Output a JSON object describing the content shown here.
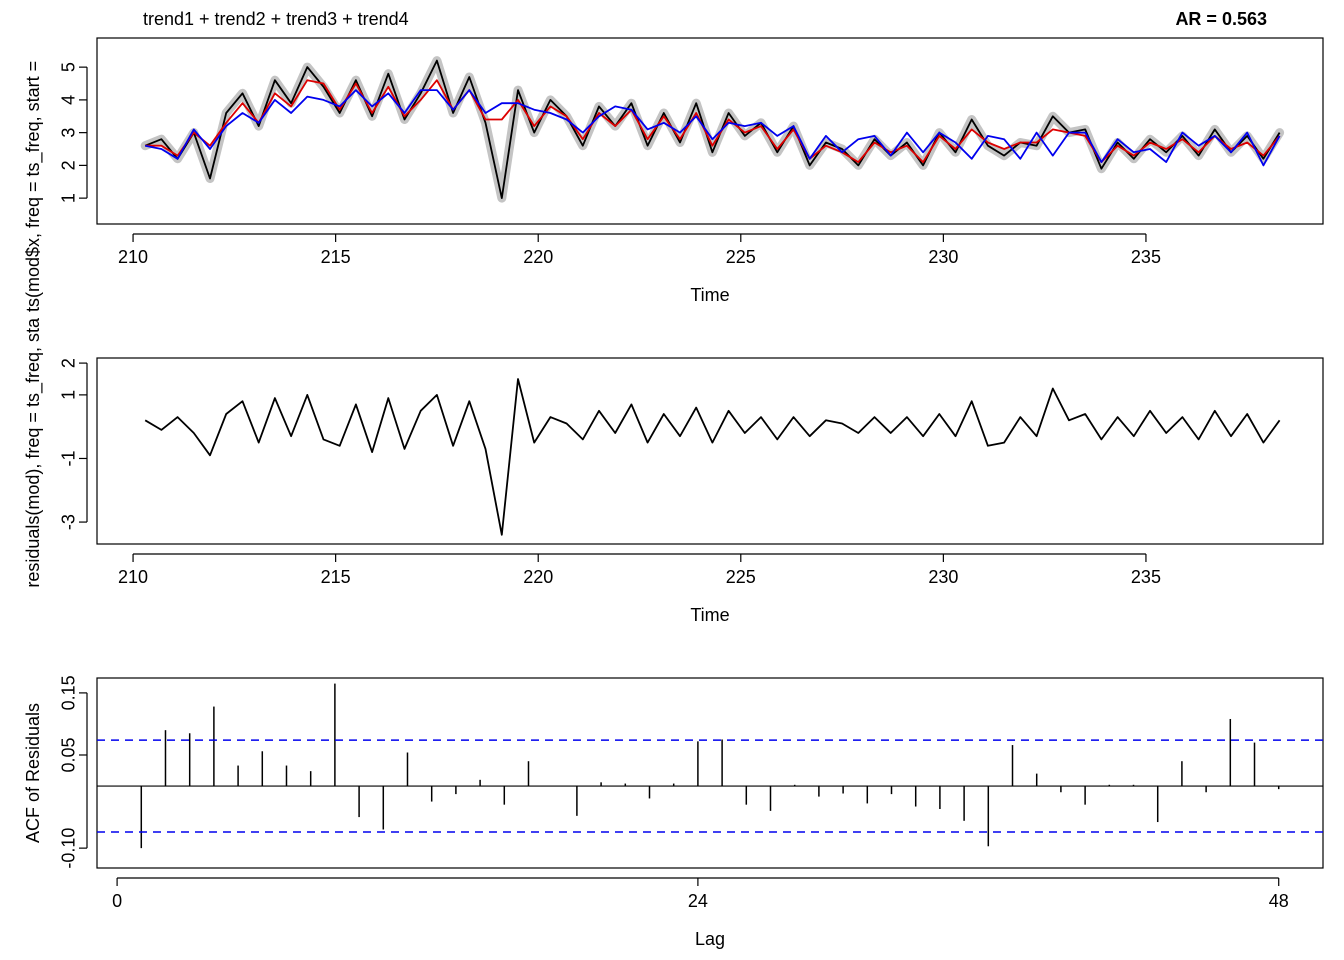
{
  "chart_data": [
    {
      "type": "line",
      "title": "trend1 + trend2 + trend3 + trend4",
      "subtitle": "AR = 0.563",
      "xlabel": "Time",
      "ylabel": "ts(mod$x, freq = ts_freq, start =",
      "xlim": [
        209.11,
        239.37
      ],
      "ylim": [
        0.21,
        5.89
      ],
      "xticks": [
        210,
        215,
        220,
        225,
        230,
        235
      ],
      "yticks": [
        1,
        2,
        3,
        4,
        5
      ],
      "x": [
        210.3,
        210.7,
        211.1,
        211.5,
        211.9,
        212.3,
        212.7,
        213.1,
        213.5,
        213.9,
        214.3,
        214.7,
        215.1,
        215.5,
        215.9,
        216.3,
        216.7,
        217.1,
        217.5,
        217.9,
        218.3,
        218.7,
        219.1,
        219.5,
        219.9,
        220.3,
        220.7,
        221.1,
        221.5,
        221.9,
        222.3,
        222.7,
        223.1,
        223.5,
        223.9,
        224.3,
        224.7,
        225.1,
        225.5,
        225.9,
        226.3,
        226.7,
        227.1,
        227.5,
        227.9,
        228.3,
        228.7,
        229.1,
        229.5,
        229.9,
        230.3,
        230.7,
        231.1,
        231.5,
        231.9,
        232.3,
        232.7,
        233.1,
        233.5,
        233.9,
        234.3,
        234.7,
        235.1,
        235.5,
        235.9,
        236.3,
        236.7,
        237.1,
        237.5,
        237.9,
        238.3
      ],
      "series": [
        {
          "color": "#000000",
          "halo": "#c4c4c4",
          "values": [
            2.6,
            2.8,
            2.2,
            3.0,
            1.6,
            3.6,
            4.2,
            3.2,
            4.6,
            3.9,
            5.0,
            4.4,
            3.6,
            4.6,
            3.5,
            4.8,
            3.4,
            4.2,
            5.2,
            3.6,
            4.7,
            3.3,
            1.0,
            4.3,
            3.0,
            4.0,
            3.5,
            2.6,
            3.8,
            3.2,
            3.9,
            2.6,
            3.6,
            2.7,
            3.9,
            2.4,
            3.6,
            2.9,
            3.3,
            2.4,
            3.2,
            2.0,
            2.7,
            2.5,
            2.0,
            2.8,
            2.3,
            2.7,
            2.0,
            3.0,
            2.4,
            3.4,
            2.6,
            2.3,
            2.7,
            2.6,
            3.5,
            3.0,
            3.1,
            1.9,
            2.7,
            2.2,
            2.8,
            2.4,
            2.9,
            2.3,
            3.1,
            2.4,
            2.9,
            2.2,
            3.0
          ]
        },
        {
          "color": "#dd0000",
          "values": [
            2.6,
            2.6,
            2.3,
            3.0,
            2.6,
            3.3,
            3.9,
            3.3,
            4.2,
            3.8,
            4.6,
            4.5,
            3.7,
            4.5,
            3.6,
            4.4,
            3.5,
            4.0,
            4.6,
            3.7,
            4.3,
            3.4,
            3.4,
            4.0,
            3.2,
            3.8,
            3.5,
            2.8,
            3.6,
            3.2,
            3.7,
            2.8,
            3.5,
            2.8,
            3.6,
            2.6,
            3.4,
            3.0,
            3.2,
            2.5,
            3.1,
            2.2,
            2.6,
            2.4,
            2.1,
            2.7,
            2.4,
            2.6,
            2.1,
            2.9,
            2.5,
            3.1,
            2.7,
            2.5,
            2.7,
            2.7,
            3.1,
            3.0,
            2.9,
            2.1,
            2.6,
            2.3,
            2.7,
            2.5,
            2.8,
            2.4,
            2.9,
            2.5,
            2.7,
            2.3,
            2.9
          ]
        },
        {
          "color": "#0000ee",
          "values": [
            2.6,
            2.5,
            2.2,
            3.1,
            2.5,
            3.2,
            3.6,
            3.3,
            4.0,
            3.6,
            4.1,
            4.0,
            3.8,
            4.3,
            3.8,
            4.2,
            3.6,
            4.3,
            4.3,
            3.7,
            4.3,
            3.6,
            3.9,
            3.9,
            3.7,
            3.6,
            3.4,
            3.0,
            3.5,
            3.8,
            3.7,
            3.1,
            3.3,
            3.0,
            3.5,
            2.8,
            3.3,
            3.2,
            3.3,
            2.9,
            3.2,
            2.2,
            2.9,
            2.4,
            2.8,
            2.9,
            2.3,
            3.0,
            2.4,
            3.0,
            2.7,
            2.2,
            2.9,
            2.8,
            2.2,
            3.0,
            2.3,
            3.0,
            3.0,
            2.1,
            2.8,
            2.4,
            2.5,
            2.1,
            3.0,
            2.6,
            2.9,
            2.4,
            3.0,
            2.0,
            2.9
          ]
        }
      ]
    },
    {
      "type": "line",
      "xlabel": "Time",
      "ylabel": "residuals(mod), freq = ts_freq, sta",
      "xlim": [
        209.11,
        239.37
      ],
      "ylim": [
        -3.69,
        2.16
      ],
      "xticks": [
        210,
        215,
        220,
        225,
        230,
        235
      ],
      "yticks": [
        -3,
        -1,
        1,
        2
      ],
      "x": [
        210.3,
        210.7,
        211.1,
        211.5,
        211.9,
        212.3,
        212.7,
        213.1,
        213.5,
        213.9,
        214.3,
        214.7,
        215.1,
        215.5,
        215.9,
        216.3,
        216.7,
        217.1,
        217.5,
        217.9,
        218.3,
        218.7,
        219.1,
        219.5,
        219.9,
        220.3,
        220.7,
        221.1,
        221.5,
        221.9,
        222.3,
        222.7,
        223.1,
        223.5,
        223.9,
        224.3,
        224.7,
        225.1,
        225.5,
        225.9,
        226.3,
        226.7,
        227.1,
        227.5,
        227.9,
        228.3,
        228.7,
        229.1,
        229.5,
        229.9,
        230.3,
        230.7,
        231.1,
        231.5,
        231.9,
        232.3,
        232.7,
        233.1,
        233.5,
        233.9,
        234.3,
        234.7,
        235.1,
        235.5,
        235.9,
        236.3,
        236.7,
        237.1,
        237.5,
        237.9,
        238.3
      ],
      "series": [
        {
          "color": "#000000",
          "values": [
            0.2,
            -0.1,
            0.3,
            -0.2,
            -0.9,
            0.4,
            0.8,
            -0.5,
            0.9,
            -0.3,
            1.0,
            -0.4,
            -0.6,
            0.7,
            -0.8,
            0.9,
            -0.7,
            0.5,
            1.0,
            -0.6,
            0.8,
            -0.7,
            -3.4,
            1.5,
            -0.5,
            0.3,
            0.1,
            -0.4,
            0.5,
            -0.2,
            0.7,
            -0.5,
            0.4,
            -0.3,
            0.6,
            -0.5,
            0.5,
            -0.2,
            0.3,
            -0.4,
            0.3,
            -0.3,
            0.2,
            0.1,
            -0.2,
            0.3,
            -0.2,
            0.3,
            -0.3,
            0.4,
            -0.3,
            0.8,
            -0.6,
            -0.5,
            0.3,
            -0.3,
            1.2,
            0.2,
            0.4,
            -0.4,
            0.3,
            -0.3,
            0.5,
            -0.2,
            0.3,
            -0.4,
            0.5,
            -0.3,
            0.4,
            -0.5,
            0.2
          ]
        }
      ]
    },
    {
      "type": "bar",
      "xlabel": "Lag",
      "ylabel": "ACF of Residuals",
      "xlim": [
        -0.83,
        49.83
      ],
      "ylim": [
        -0.132,
        0.174
      ],
      "xticks": [
        0,
        24,
        48
      ],
      "yticks": [
        {
          "value": -0.1,
          "label": "-0.10"
        },
        0.05,
        0.15
      ],
      "x": [
        1,
        2,
        3,
        4,
        5,
        6,
        7,
        8,
        9,
        10,
        11,
        12,
        13,
        14,
        15,
        16,
        17,
        18,
        19,
        20,
        21,
        22,
        23,
        24,
        25,
        26,
        27,
        28,
        29,
        30,
        31,
        32,
        33,
        34,
        35,
        36,
        37,
        38,
        39,
        40,
        41,
        42,
        43,
        44,
        45,
        46,
        47,
        48
      ],
      "values": [
        -0.1,
        0.09,
        0.085,
        0.128,
        0.033,
        0.056,
        0.033,
        0.024,
        0.165,
        -0.05,
        -0.07,
        0.054,
        -0.025,
        -0.013,
        0.01,
        -0.03,
        0.04,
        0,
        -0.048,
        0.006,
        0.004,
        -0.02,
        0.004,
        0.072,
        0.075,
        -0.03,
        -0.04,
        0.002,
        -0.017,
        -0.012,
        -0.028,
        -0.013,
        -0.033,
        -0.037,
        -0.056,
        -0.097,
        0.066,
        0.02,
        -0.01,
        -0.03,
        0.002,
        0.002,
        -0.058,
        0.04,
        -0.01,
        0.108,
        0.07,
        -0.005
      ],
      "color": "#000000",
      "ci": 0.074,
      "ci_color": "#0000ee"
    }
  ]
}
